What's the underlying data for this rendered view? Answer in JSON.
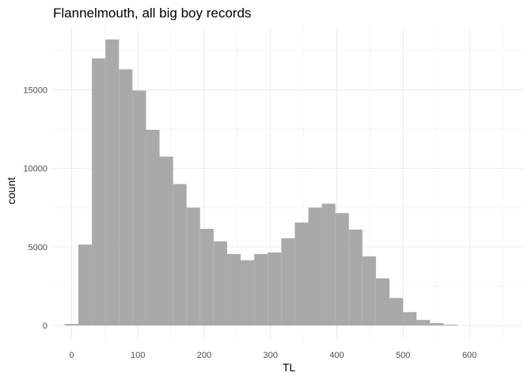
{
  "chart_data": {
    "type": "bar",
    "title": "Flannelmouth, all big boy records",
    "xlabel": "TL",
    "ylabel": "count",
    "bin_width": 20.4,
    "bins": [
      {
        "start": -10.2,
        "end": 10.2,
        "count": 100
      },
      {
        "start": 10.2,
        "end": 30.6,
        "count": 5150
      },
      {
        "start": 30.6,
        "end": 51.0,
        "count": 17000
      },
      {
        "start": 51.0,
        "end": 71.4,
        "count": 18200
      },
      {
        "start": 71.4,
        "end": 91.8,
        "count": 16300
      },
      {
        "start": 91.8,
        "end": 112.2,
        "count": 14950
      },
      {
        "start": 112.2,
        "end": 132.6,
        "count": 12450
      },
      {
        "start": 132.6,
        "end": 153.0,
        "count": 10750
      },
      {
        "start": 153.0,
        "end": 173.4,
        "count": 9000
      },
      {
        "start": 173.4,
        "end": 193.8,
        "count": 7500
      },
      {
        "start": 193.8,
        "end": 214.2,
        "count": 6150
      },
      {
        "start": 214.2,
        "end": 234.6,
        "count": 5350
      },
      {
        "start": 234.6,
        "end": 255.0,
        "count": 4550
      },
      {
        "start": 255.0,
        "end": 275.4,
        "count": 4150
      },
      {
        "start": 275.4,
        "end": 295.8,
        "count": 4550
      },
      {
        "start": 295.8,
        "end": 316.2,
        "count": 4650
      },
      {
        "start": 316.2,
        "end": 336.6,
        "count": 5550
      },
      {
        "start": 336.6,
        "end": 357.0,
        "count": 6550
      },
      {
        "start": 357.0,
        "end": 377.4,
        "count": 7500
      },
      {
        "start": 377.4,
        "end": 397.8,
        "count": 7750
      },
      {
        "start": 397.8,
        "end": 418.2,
        "count": 7150
      },
      {
        "start": 418.2,
        "end": 438.6,
        "count": 6100
      },
      {
        "start": 438.6,
        "end": 459.0,
        "count": 4400
      },
      {
        "start": 459.0,
        "end": 479.4,
        "count": 3000
      },
      {
        "start": 479.4,
        "end": 499.8,
        "count": 1750
      },
      {
        "start": 499.8,
        "end": 520.2,
        "count": 850
      },
      {
        "start": 520.2,
        "end": 540.6,
        "count": 350
      },
      {
        "start": 540.6,
        "end": 561.0,
        "count": 150
      },
      {
        "start": 561.0,
        "end": 581.4,
        "count": 50
      }
    ],
    "xlim": [
      -28,
      680
    ],
    "ylim": [
      -900,
      19000
    ],
    "x_ticks": [
      0,
      100,
      200,
      300,
      400,
      500,
      600
    ],
    "x_tick_labels": [
      "0",
      "100",
      "200",
      "300",
      "400",
      "500",
      "600"
    ],
    "y_ticks": [
      0,
      5000,
      10000,
      15000
    ],
    "y_tick_labels": [
      "0",
      "5000",
      "10000",
      "15000"
    ],
    "grid": true,
    "bar_color": "#a9a9a9",
    "grid_color": "#ebebeb"
  }
}
